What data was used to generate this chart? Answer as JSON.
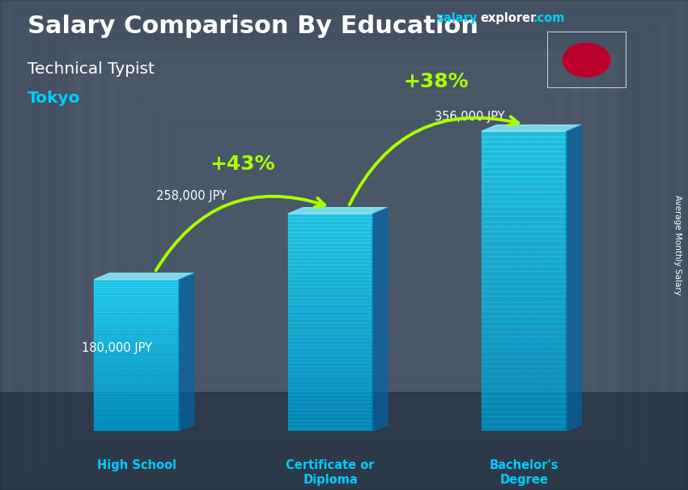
{
  "title": "Salary Comparison By Education",
  "subtitle": "Technical Typist",
  "city": "Tokyo",
  "ylabel": "Average Monthly Salary",
  "categories": [
    "High School",
    "Certificate or\nDiploma",
    "Bachelor's\nDegree"
  ],
  "values": [
    180000,
    258000,
    356000
  ],
  "value_labels": [
    "180,000 JPY",
    "258,000 JPY",
    "356,000 JPY"
  ],
  "pct_labels": [
    "+43%",
    "+38%"
  ],
  "pct_color": "#aaff00",
  "title_color": "#ffffff",
  "subtitle_color": "#ffffff",
  "city_color": "#00ccff",
  "label_color": "#ffffff",
  "x_label_color": "#00ccff",
  "watermark_salary_color": "#00ccff",
  "watermark_explorer_color": "#ffffff",
  "watermark_com_color": "#00ccff",
  "bar_face_color": "#00bfff",
  "bar_left_color": "#0077bb",
  "bar_top_color": "#66ddff",
  "bar_alpha": 0.75,
  "bg_color": "#5a6a7a",
  "fig_width": 8.5,
  "fig_height": 6.06,
  "flag_color": "#BC002D"
}
